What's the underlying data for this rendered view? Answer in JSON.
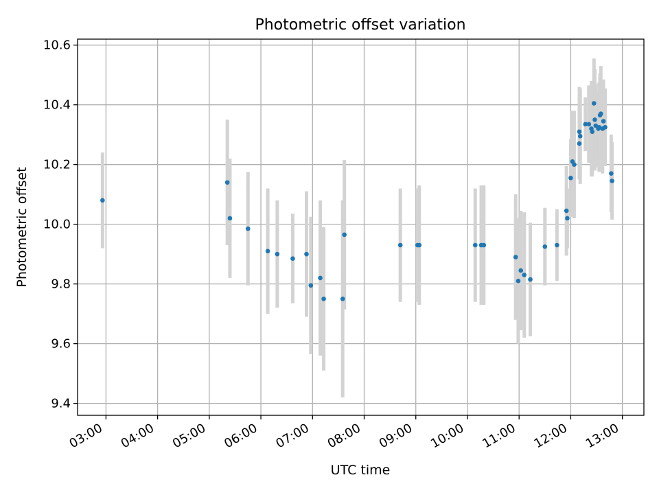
{
  "chart_data": {
    "type": "scatter",
    "title": "Photometric offset variation",
    "xlabel": "UTC time",
    "ylabel": "Photometric offset",
    "x_format": "time HH:MM",
    "x_ticks": [
      "03:00",
      "04:00",
      "05:00",
      "06:00",
      "07:00",
      "08:00",
      "09:00",
      "10:00",
      "11:00",
      "12:00",
      "13:00"
    ],
    "y_ticks": [
      "9.4",
      "9.6",
      "9.8",
      "10.0",
      "10.2",
      "10.4",
      "10.6"
    ],
    "xlim": [
      "02:27",
      "13:25"
    ],
    "ylim": [
      9.36,
      10.62
    ],
    "grid": true,
    "colors": {
      "point": "#1f77b4",
      "errorbar": "#d3d3d3",
      "grid": "#b0b0b0"
    },
    "series": [
      {
        "x": [
          "02:56",
          "05:21",
          "05:24",
          "05:45",
          "06:08",
          "06:19",
          "06:37",
          "06:53",
          "06:58",
          "07:09",
          "07:13",
          "07:35",
          "07:37",
          "08:42",
          "09:02",
          "09:04",
          "10:09",
          "10:16",
          "10:19",
          "10:56",
          "10:59",
          "11:02",
          "11:06",
          "11:13",
          "11:30",
          "11:44",
          "11:55",
          "11:56",
          "12:00",
          "12:02",
          "12:04",
          "12:10",
          "12:10",
          "12:11",
          "12:17",
          "12:21",
          "12:24",
          "12:25",
          "12:27",
          "12:28",
          "12:29",
          "12:32",
          "12:33",
          "12:34",
          "12:35",
          "12:37",
          "12:38",
          "12:40",
          "12:47",
          "12:48"
        ],
        "y": [
          10.08,
          10.14,
          10.02,
          9.985,
          9.91,
          9.9,
          9.885,
          9.9,
          9.795,
          9.82,
          9.75,
          9.75,
          9.965,
          9.93,
          9.93,
          9.93,
          9.93,
          9.93,
          9.93,
          9.89,
          9.81,
          9.845,
          9.83,
          9.815,
          9.925,
          9.93,
          10.045,
          10.02,
          10.155,
          10.21,
          10.2,
          10.27,
          10.31,
          10.295,
          10.335,
          10.335,
          10.32,
          10.31,
          10.405,
          10.35,
          10.33,
          10.32,
          10.325,
          10.365,
          10.37,
          10.32,
          10.345,
          10.325,
          10.17,
          10.145
        ],
        "yerr": [
          0.16,
          0.21,
          0.2,
          0.19,
          0.21,
          0.18,
          0.15,
          0.21,
          0.23,
          0.26,
          0.24,
          0.33,
          0.25,
          0.19,
          0.19,
          0.2,
          0.19,
          0.2,
          0.2,
          0.21,
          0.21,
          0.2,
          0.21,
          0.19,
          0.13,
          0.12,
          0.15,
          0.1,
          0.13,
          0.17,
          0.18,
          0.12,
          0.15,
          0.16,
          0.09,
          0.13,
          0.16,
          0.15,
          0.15,
          0.17,
          0.14,
          0.12,
          0.15,
          0.14,
          0.16,
          0.15,
          0.14,
          0.13,
          0.13,
          0.13
        ]
      }
    ]
  }
}
